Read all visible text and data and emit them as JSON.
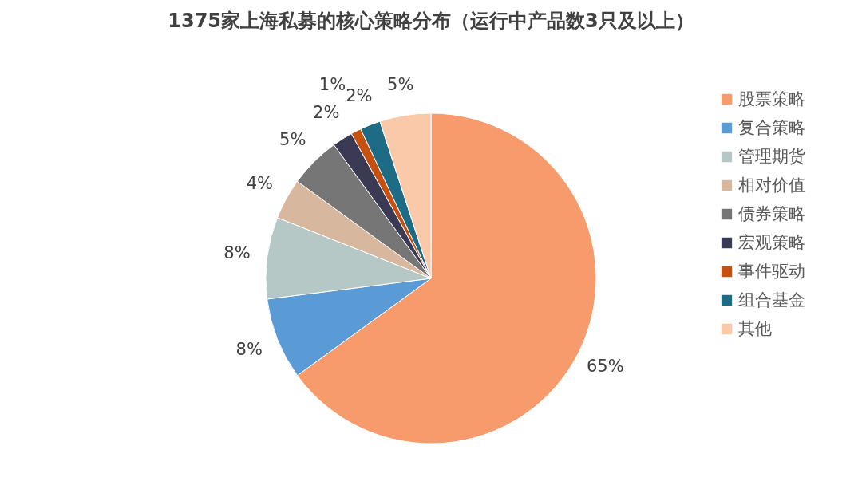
{
  "chart_data": {
    "type": "pie",
    "title": "1375家上海私募的核心策略分布（运行中产品数3只及以上）",
    "categories": [
      "股票策略",
      "复合策略",
      "管理期货",
      "相对价值",
      "债券策略",
      "宏观策略",
      "事件驱动",
      "组合基金",
      "其他"
    ],
    "values": [
      65,
      8,
      8,
      4,
      5,
      2,
      1,
      2,
      5
    ],
    "value_labels": [
      "65%",
      "8%",
      "8%",
      "4%",
      "5%",
      "2%",
      "1%",
      "2%",
      "5%"
    ],
    "colors": [
      "#f79b6d",
      "#5b9bd5",
      "#b5c8c6",
      "#d7b89e",
      "#767676",
      "#3a3a55",
      "#c5500f",
      "#1e6b86",
      "#f9c9aa"
    ],
    "legend": "right"
  }
}
